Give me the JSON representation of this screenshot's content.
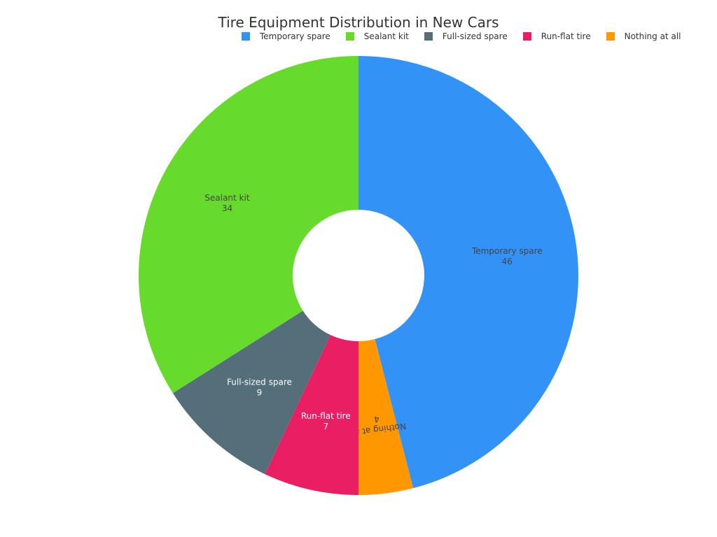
{
  "chart_data": {
    "type": "pie",
    "donut": true,
    "title": "Tire Equipment Distribution in New Cars",
    "categories": [
      "Temporary spare",
      "Sealant kit",
      "Full-sized spare",
      "Run-flat tire",
      "Nothing at all"
    ],
    "values": [
      46,
      34,
      9,
      7,
      4
    ],
    "colors": [
      "#3292f5",
      "#67db2b",
      "#546e7a",
      "#e91e63",
      "#ff9800"
    ],
    "label_colors": [
      "#444444",
      "#444444",
      "#ffffff",
      "#ffffff",
      "#444444"
    ],
    "legend_position": "top",
    "slice_order_clockwise_from_top": [
      "Temporary spare",
      "Nothing at all",
      "Run-flat tire",
      "Full-sized spare",
      "Sealant kit"
    ]
  }
}
